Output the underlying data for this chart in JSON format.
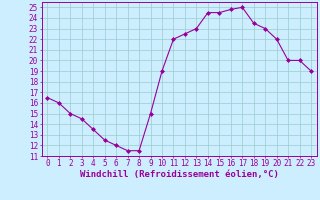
{
  "x": [
    0,
    1,
    2,
    3,
    4,
    5,
    6,
    7,
    8,
    9,
    10,
    11,
    12,
    13,
    14,
    15,
    16,
    17,
    18,
    19,
    20,
    21,
    22,
    23
  ],
  "y": [
    16.5,
    16.0,
    15.0,
    14.5,
    13.5,
    12.5,
    12.0,
    11.5,
    11.5,
    15.0,
    19.0,
    22.0,
    22.5,
    23.0,
    24.5,
    24.5,
    24.8,
    25.0,
    23.5,
    23.0,
    22.0,
    20.0,
    20.0,
    19.0
  ],
  "line_color": "#990099",
  "marker": "D",
  "markersize": 2.0,
  "linewidth": 0.8,
  "xlabel": "Windchill (Refroidissement éolien,°C)",
  "xlabel_fontsize": 6.5,
  "xlabel_color": "#990099",
  "bg_color": "#cceeff",
  "grid_color": "#99cccc",
  "ylim": [
    11,
    25.5
  ],
  "xlim": [
    -0.5,
    23.5
  ],
  "yticks": [
    11,
    12,
    13,
    14,
    15,
    16,
    17,
    18,
    19,
    20,
    21,
    22,
    23,
    24,
    25
  ],
  "xticks": [
    0,
    1,
    2,
    3,
    4,
    5,
    6,
    7,
    8,
    9,
    10,
    11,
    12,
    13,
    14,
    15,
    16,
    17,
    18,
    19,
    20,
    21,
    22,
    23
  ],
  "tick_fontsize": 5.5,
  "tick_color": "#990099",
  "spine_color": "#990099"
}
